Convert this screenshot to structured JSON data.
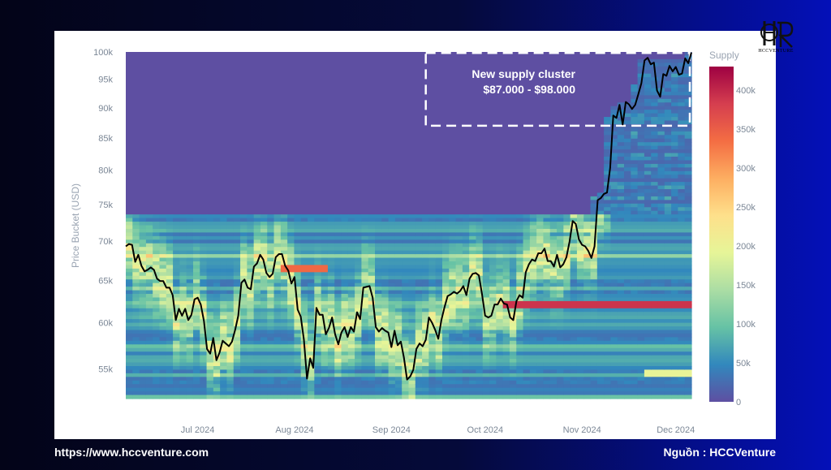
{
  "footer": {
    "url": "https://www.hccventure.com",
    "source": "Nguồn : HCCVenture"
  },
  "logo": {
    "text": "HCCVENTURE"
  },
  "chart_data": {
    "type": "heatmap",
    "ylabel": "Price Bucket (USD)",
    "y_scale": "log",
    "ylim": [
      52000,
      100000
    ],
    "yticks": [
      {
        "label": "100k",
        "value": 100000
      },
      {
        "label": "95k",
        "value": 95000
      },
      {
        "label": "90k",
        "value": 90000
      },
      {
        "label": "85k",
        "value": 85000
      },
      {
        "label": "80k",
        "value": 80000
      },
      {
        "label": "75k",
        "value": 75000
      },
      {
        "label": "70k",
        "value": 70000
      },
      {
        "label": "65k",
        "value": 65000
      },
      {
        "label": "60k",
        "value": 60000
      },
      {
        "label": "55k",
        "value": 55000
      }
    ],
    "xlim": [
      "2024-06-08",
      "2024-12-06"
    ],
    "xticks": [
      {
        "label": "Jul 2024",
        "date": "2024-07-01"
      },
      {
        "label": "Aug 2024",
        "date": "2024-08-01"
      },
      {
        "label": "Sep 2024",
        "date": "2024-09-01"
      },
      {
        "label": "Oct 2024",
        "date": "2024-10-01"
      },
      {
        "label": "Nov 2024",
        "date": "2024-11-01"
      },
      {
        "label": "Dec 2024",
        "date": "2024-12-01"
      }
    ],
    "colorbar": {
      "title": "Supply",
      "min": 0,
      "max": 430000,
      "ticks": [
        {
          "label": "400k",
          "value": 400000
        },
        {
          "label": "350k",
          "value": 350000
        },
        {
          "label": "300k",
          "value": 300000
        },
        {
          "label": "250k",
          "value": 250000
        },
        {
          "label": "200k",
          "value": 200000
        },
        {
          "label": "150k",
          "value": 150000
        },
        {
          "label": "100k",
          "value": 100000
        },
        {
          "label": "50k",
          "value": 50000
        },
        {
          "label": "0",
          "value": 0
        }
      ],
      "colorscale": [
        "#5e4fa2",
        "#3288bd",
        "#66c2a5",
        "#abdda4",
        "#e6f598",
        "#fee08b",
        "#fdae61",
        "#f46d43",
        "#d53e4f",
        "#9e0142"
      ]
    },
    "annotation": {
      "line1": "New supply cluster",
      "line2": "$87.000 - $98.000",
      "price_range": [
        87000,
        98000
      ]
    },
    "hot_bands": [
      {
        "start": "2024-10-06",
        "end": "2024-12-06",
        "price": 62000,
        "supply": 390000
      },
      {
        "start": "2024-07-28",
        "end": "2024-08-12",
        "price": 66500,
        "supply": 340000
      },
      {
        "start": "2024-11-20",
        "end": "2024-12-06",
        "price": 54500,
        "supply": 195000
      }
    ],
    "series": [
      {
        "name": "BTC price",
        "color": "#000000",
        "points": [
          [
            "2024-06-08",
            69300
          ],
          [
            "2024-06-09",
            69600
          ],
          [
            "2024-06-10",
            69500
          ],
          [
            "2024-06-11",
            67300
          ],
          [
            "2024-06-12",
            68200
          ],
          [
            "2024-06-13",
            66800
          ],
          [
            "2024-06-14",
            66100
          ],
          [
            "2024-06-15",
            66300
          ],
          [
            "2024-06-16",
            66600
          ],
          [
            "2024-06-17",
            66300
          ],
          [
            "2024-06-18",
            65200
          ],
          [
            "2024-06-19",
            64900
          ],
          [
            "2024-06-20",
            64900
          ],
          [
            "2024-06-21",
            64100
          ],
          [
            "2024-06-22",
            64100
          ],
          [
            "2024-06-23",
            63200
          ],
          [
            "2024-06-24",
            60300
          ],
          [
            "2024-06-25",
            61600
          ],
          [
            "2024-06-26",
            60800
          ],
          [
            "2024-06-27",
            61600
          ],
          [
            "2024-06-28",
            60300
          ],
          [
            "2024-06-29",
            60900
          ],
          [
            "2024-06-30",
            62700
          ],
          [
            "2024-07-01",
            62900
          ],
          [
            "2024-07-02",
            62100
          ],
          [
            "2024-07-03",
            60200
          ],
          [
            "2024-07-04",
            57100
          ],
          [
            "2024-07-05",
            56600
          ],
          [
            "2024-07-06",
            58300
          ],
          [
            "2024-07-07",
            55900
          ],
          [
            "2024-07-08",
            56700
          ],
          [
            "2024-07-09",
            58000
          ],
          [
            "2024-07-10",
            57700
          ],
          [
            "2024-07-11",
            57400
          ],
          [
            "2024-07-12",
            57900
          ],
          [
            "2024-07-13",
            59200
          ],
          [
            "2024-07-14",
            60800
          ],
          [
            "2024-07-15",
            64700
          ],
          [
            "2024-07-16",
            65100
          ],
          [
            "2024-07-17",
            64100
          ],
          [
            "2024-07-18",
            63900
          ],
          [
            "2024-07-19",
            66700
          ],
          [
            "2024-07-20",
            67100
          ],
          [
            "2024-07-21",
            68200
          ],
          [
            "2024-07-22",
            67600
          ],
          [
            "2024-07-23",
            65900
          ],
          [
            "2024-07-24",
            65400
          ],
          [
            "2024-07-25",
            65800
          ],
          [
            "2024-07-26",
            67900
          ],
          [
            "2024-07-27",
            68300
          ],
          [
            "2024-07-28",
            68300
          ],
          [
            "2024-07-29",
            66800
          ],
          [
            "2024-07-30",
            66200
          ],
          [
            "2024-07-31",
            64600
          ],
          [
            "2024-08-01",
            65400
          ],
          [
            "2024-08-02",
            61500
          ],
          [
            "2024-08-03",
            60700
          ],
          [
            "2024-08-04",
            58100
          ],
          [
            "2024-08-05",
            54000
          ],
          [
            "2024-08-06",
            56100
          ],
          [
            "2024-08-07",
            55100
          ],
          [
            "2024-08-08",
            61700
          ],
          [
            "2024-08-09",
            60900
          ],
          [
            "2024-08-10",
            60900
          ],
          [
            "2024-08-11",
            58700
          ],
          [
            "2024-08-12",
            59400
          ],
          [
            "2024-08-13",
            60600
          ],
          [
            "2024-08-14",
            58700
          ],
          [
            "2024-08-15",
            57600
          ],
          [
            "2024-08-16",
            58900
          ],
          [
            "2024-08-17",
            59500
          ],
          [
            "2024-08-18",
            58400
          ],
          [
            "2024-08-19",
            59500
          ],
          [
            "2024-08-20",
            59000
          ],
          [
            "2024-08-21",
            61200
          ],
          [
            "2024-08-22",
            60400
          ],
          [
            "2024-08-23",
            64100
          ],
          [
            "2024-08-24",
            64200
          ],
          [
            "2024-08-25",
            64300
          ],
          [
            "2024-08-26",
            62900
          ],
          [
            "2024-08-27",
            59500
          ],
          [
            "2024-08-28",
            59000
          ],
          [
            "2024-08-29",
            59400
          ],
          [
            "2024-08-30",
            59100
          ],
          [
            "2024-08-31",
            58900
          ],
          [
            "2024-09-01",
            57300
          ],
          [
            "2024-09-02",
            59100
          ],
          [
            "2024-09-03",
            57500
          ],
          [
            "2024-09-04",
            57900
          ],
          [
            "2024-09-05",
            56200
          ],
          [
            "2024-09-06",
            53900
          ],
          [
            "2024-09-07",
            54200
          ],
          [
            "2024-09-08",
            54900
          ],
          [
            "2024-09-09",
            57100
          ],
          [
            "2024-09-10",
            57700
          ],
          [
            "2024-09-11",
            57400
          ],
          [
            "2024-09-12",
            58100
          ],
          [
            "2024-09-13",
            60600
          ],
          [
            "2024-09-14",
            60000
          ],
          [
            "2024-09-15",
            59200
          ],
          [
            "2024-09-16",
            58200
          ],
          [
            "2024-09-17",
            60300
          ],
          [
            "2024-09-18",
            61800
          ],
          [
            "2024-09-19",
            63100
          ],
          [
            "2024-09-20",
            63300
          ],
          [
            "2024-09-21",
            63600
          ],
          [
            "2024-09-22",
            63400
          ],
          [
            "2024-09-23",
            63700
          ],
          [
            "2024-09-24",
            64300
          ],
          [
            "2024-09-25",
            63200
          ],
          [
            "2024-09-26",
            65200
          ],
          [
            "2024-09-27",
            65800
          ],
          [
            "2024-09-28",
            65900
          ],
          [
            "2024-09-29",
            65600
          ],
          [
            "2024-09-30",
            63300
          ],
          [
            "2024-10-01",
            60800
          ],
          [
            "2024-10-02",
            60600
          ],
          [
            "2024-10-03",
            60800
          ],
          [
            "2024-10-04",
            62100
          ],
          [
            "2024-10-05",
            62100
          ],
          [
            "2024-10-06",
            62800
          ],
          [
            "2024-10-07",
            62200
          ],
          [
            "2024-10-08",
            62100
          ],
          [
            "2024-10-09",
            60600
          ],
          [
            "2024-10-10",
            60300
          ],
          [
            "2024-10-11",
            62500
          ],
          [
            "2024-10-12",
            63200
          ],
          [
            "2024-10-13",
            62900
          ],
          [
            "2024-10-14",
            66000
          ],
          [
            "2024-10-15",
            67000
          ],
          [
            "2024-10-16",
            67600
          ],
          [
            "2024-10-17",
            67400
          ],
          [
            "2024-10-18",
            68400
          ],
          [
            "2024-10-19",
            68400
          ],
          [
            "2024-10-20",
            69000
          ],
          [
            "2024-10-21",
            67400
          ],
          [
            "2024-10-22",
            67400
          ],
          [
            "2024-10-23",
            66700
          ],
          [
            "2024-10-24",
            68200
          ],
          [
            "2024-10-25",
            66600
          ],
          [
            "2024-10-26",
            67000
          ],
          [
            "2024-10-27",
            67900
          ],
          [
            "2024-10-28",
            69900
          ],
          [
            "2024-10-29",
            72700
          ],
          [
            "2024-10-30",
            72300
          ],
          [
            "2024-10-31",
            70200
          ],
          [
            "2024-11-01",
            69500
          ],
          [
            "2024-11-02",
            69300
          ],
          [
            "2024-11-03",
            68700
          ],
          [
            "2024-11-04",
            67800
          ],
          [
            "2024-11-05",
            69300
          ],
          [
            "2024-11-06",
            75600
          ],
          [
            "2024-11-07",
            75900
          ],
          [
            "2024-11-08",
            76500
          ],
          [
            "2024-11-09",
            76700
          ],
          [
            "2024-11-10",
            80400
          ],
          [
            "2024-11-11",
            88700
          ],
          [
            "2024-11-12",
            88300
          ],
          [
            "2024-11-13",
            90500
          ],
          [
            "2024-11-14",
            87200
          ],
          [
            "2024-11-15",
            91000
          ],
          [
            "2024-11-16",
            90600
          ],
          [
            "2024-11-17",
            89800
          ],
          [
            "2024-11-18",
            90500
          ],
          [
            "2024-11-19",
            92300
          ],
          [
            "2024-11-20",
            94300
          ],
          [
            "2024-11-21",
            98400
          ],
          [
            "2024-11-22",
            98900
          ],
          [
            "2024-11-23",
            97700
          ],
          [
            "2024-11-24",
            98000
          ],
          [
            "2024-11-25",
            93000
          ],
          [
            "2024-11-26",
            91900
          ],
          [
            "2024-11-27",
            95900
          ],
          [
            "2024-11-28",
            95600
          ],
          [
            "2024-11-29",
            97400
          ],
          [
            "2024-11-30",
            96400
          ],
          [
            "2024-12-01",
            97200
          ],
          [
            "2024-12-02",
            95800
          ],
          [
            "2024-12-03",
            96000
          ],
          [
            "2024-12-04",
            98800
          ],
          [
            "2024-12-05",
            97900
          ],
          [
            "2024-12-06",
            99900
          ]
        ]
      }
    ]
  }
}
